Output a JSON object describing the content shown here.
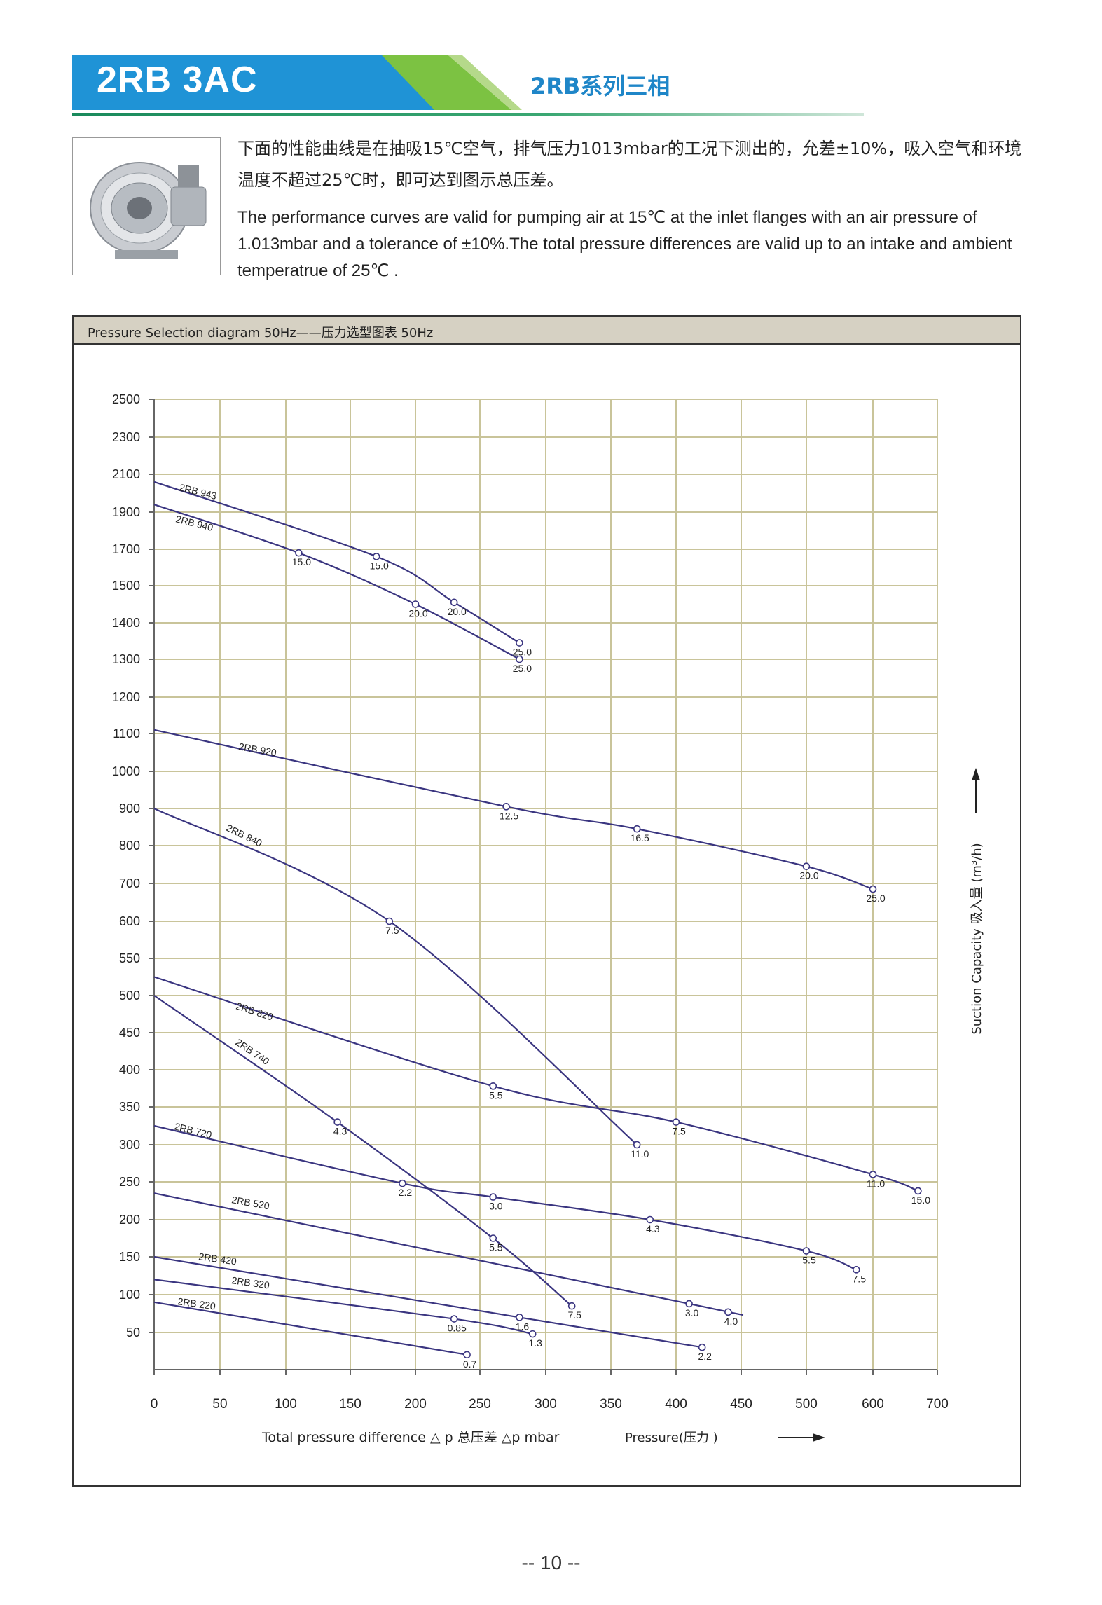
{
  "header": {
    "product_code": "2RB 3AC",
    "series_cn": "2RB系列三相"
  },
  "description": {
    "cn": "下面的性能曲线是在抽吸15℃空气，排气压力1013mbar的工况下测出的，允差±10%，吸入空气和环境温度不超过25℃时，即可达到图示总压差。",
    "en": "The performance curves are valid for pumping air at 15℃ at the inlet flanges with an air pressure of 1.013mbar and a tolerance of ±10%.The total pressure differences are valid up to an intake and ambient temperatrue of 25℃ ."
  },
  "chart_title": "Pressure Selection diagram 50Hz——压力选型图表 50Hz",
  "page_number": "-- 10 --",
  "colors": {
    "curve": "#3a3580",
    "grid": "#c9c49a",
    "header_blue": "#1f93d6",
    "header_green": "#7cc242"
  },
  "chart_data": {
    "type": "line",
    "xlabel": "Total pressure difference △ p 总压差 △p mbar",
    "xlabel2": "Pressure(压力 )",
    "ylabel": "Suction Capacity 吸入量 (m³/h)",
    "x_ticks": [
      "0",
      "50",
      "100",
      "150",
      "200",
      "250",
      "300",
      "350",
      "400",
      "450",
      "500",
      "600",
      "700"
    ],
    "y_ticks": [
      "2500",
      "2300",
      "2100",
      "1900",
      "1700",
      "1500",
      "1400",
      "1300",
      "1200",
      "1100",
      "1000",
      "900",
      "800",
      "700",
      "600",
      "550",
      "500",
      "450",
      "400",
      "350",
      "300",
      "250",
      "200",
      "150",
      "100",
      "50"
    ],
    "grid": true,
    "series": [
      {
        "name": "2RB 943",
        "x": [
          0,
          170,
          230,
          280
        ],
        "y": [
          2060,
          1660,
          1455,
          1345
        ],
        "markers": [
          {
            "x": 170,
            "y": 1660,
            "label": "15.0"
          },
          {
            "x": 230,
            "y": 1455,
            "label": "20.0"
          },
          {
            "x": 280,
            "y": 1345,
            "label": "25.0"
          }
        ]
      },
      {
        "name": "2RB 940",
        "x": [
          0,
          110,
          200,
          280
        ],
        "y": [
          1940,
          1680,
          1450,
          1300
        ],
        "markers": [
          {
            "x": 110,
            "y": 1680,
            "label": "15.0"
          },
          {
            "x": 200,
            "y": 1450,
            "label": "20.0"
          },
          {
            "x": 280,
            "y": 1300,
            "label": "25.0"
          }
        ]
      },
      {
        "name": "2RB 920",
        "x": [
          0,
          270,
          370,
          500,
          600
        ],
        "y": [
          1110,
          905,
          845,
          745,
          685
        ],
        "markers": [
          {
            "x": 270,
            "y": 905,
            "label": "12.5"
          },
          {
            "x": 370,
            "y": 845,
            "label": "16.5"
          },
          {
            "x": 500,
            "y": 745,
            "label": "20.0"
          },
          {
            "x": 600,
            "y": 685,
            "label": "25.0"
          }
        ]
      },
      {
        "name": "2RB 840",
        "x": [
          0,
          180,
          370
        ],
        "y": [
          900,
          600,
          300
        ],
        "markers": [
          {
            "x": 180,
            "y": 600,
            "label": "7.5"
          },
          {
            "x": 370,
            "y": 300,
            "label": "11.0"
          }
        ]
      },
      {
        "name": "2RB 820",
        "x": [
          0,
          260,
          400,
          600,
          670
        ],
        "y": [
          525,
          378,
          330,
          260,
          238
        ],
        "markers": [
          {
            "x": 260,
            "y": 378,
            "label": "5.5"
          },
          {
            "x": 400,
            "y": 330,
            "label": "7.5"
          },
          {
            "x": 600,
            "y": 260,
            "label": "11.0"
          },
          {
            "x": 670,
            "y": 238,
            "label": "15.0"
          }
        ]
      },
      {
        "name": "2RB 740",
        "x": [
          0,
          140,
          260,
          320
        ],
        "y": [
          500,
          330,
          175,
          85
        ],
        "markers": [
          {
            "x": 140,
            "y": 330,
            "label": "4.3"
          },
          {
            "x": 260,
            "y": 175,
            "label": "5.5"
          },
          {
            "x": 320,
            "y": 85,
            "label": "7.5"
          }
        ]
      },
      {
        "name": "2RB 720",
        "x": [
          0,
          190,
          260,
          380,
          500,
          575
        ],
        "y": [
          325,
          248,
          230,
          200,
          158,
          133
        ],
        "markers": [
          {
            "x": 190,
            "y": 248,
            "label": "2.2"
          },
          {
            "x": 260,
            "y": 230,
            "label": "3.0"
          },
          {
            "x": 380,
            "y": 200,
            "label": "4.3"
          },
          {
            "x": 500,
            "y": 158,
            "label": "5.5"
          },
          {
            "x": 575,
            "y": 133,
            "label": "7.5"
          }
        ]
      },
      {
        "name": "2RB 520",
        "x": [
          0,
          410,
          440
        ],
        "y": [
          235,
          88,
          77
        ],
        "markers": [
          {
            "x": 410,
            "y": 88,
            "label": "3.0"
          },
          {
            "x": 440,
            "y": 77,
            "label": "4.0"
          }
        ]
      },
      {
        "name": "2RB 420",
        "x": [
          0,
          280,
          420
        ],
        "y": [
          150,
          70,
          30
        ],
        "markers": [
          {
            "x": 280,
            "y": 70,
            "label": "1.6"
          },
          {
            "x": 420,
            "y": 30,
            "label": "2.2"
          }
        ]
      },
      {
        "name": "2RB 320",
        "x": [
          0,
          230,
          290
        ],
        "y": [
          120,
          68,
          48
        ],
        "markers": [
          {
            "x": 230,
            "y": 68,
            "label": "0.85"
          },
          {
            "x": 290,
            "y": 48,
            "label": "1.3"
          }
        ]
      },
      {
        "name": "2RB 220",
        "x": [
          0,
          240
        ],
        "y": [
          90,
          20
        ],
        "markers": [
          {
            "x": 240,
            "y": 20,
            "label": "0.7"
          }
        ]
      }
    ]
  }
}
